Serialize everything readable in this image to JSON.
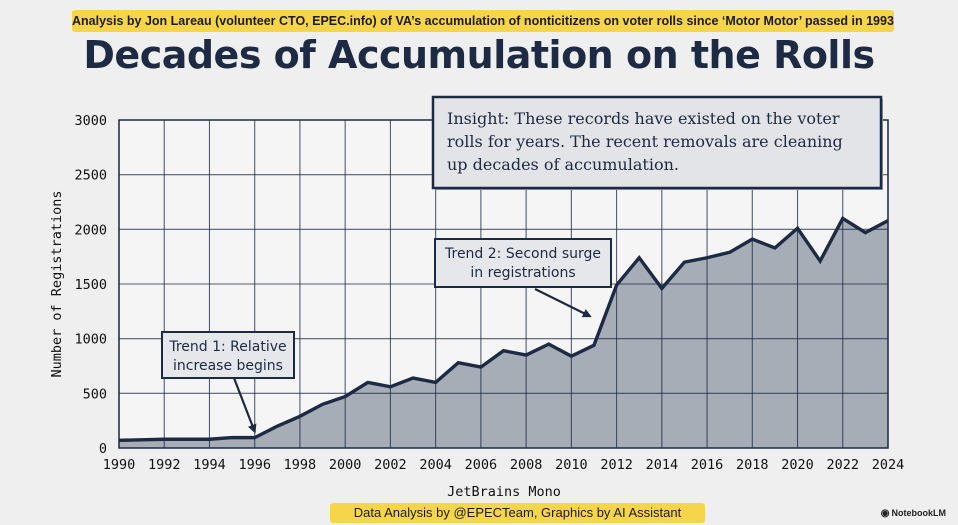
{
  "header": {
    "banner": "Analysis by Jon Lareau (volunteer CTO, EPEC.info) of VA’s accumulation of nonticitizens on voter rolls since ‘Motor Motor’ passed in 1993.",
    "title": "Decades of Accumulation on the Rolls"
  },
  "footer": {
    "credit": "Data Analysis by @EPECTeam, Graphics by AI Assistant",
    "brand": "NotebookLM",
    "brand_icon": "notebooklm-logo-icon"
  },
  "colors": {
    "area_fill": "#a7adb6",
    "line": "#1c2a44",
    "grid": "#1c2a44",
    "banner": "#f7d54a",
    "insight_bg": "#e2e4e7"
  },
  "chart_data": {
    "type": "area",
    "title": "Decades of Accumulation on the Rolls",
    "xlabel": "JetBrains Mono",
    "ylabel": "Number of Registrations",
    "xlim": [
      1990,
      2024
    ],
    "ylim": [
      0,
      3000
    ],
    "x_ticks": [
      "1990",
      "1992",
      "1994",
      "1996",
      "1998",
      "2000",
      "2002",
      "2004",
      "2006",
      "2008",
      "2010",
      "2012",
      "2014",
      "2016",
      "2018",
      "2020",
      "2022",
      "2024"
    ],
    "y_ticks": [
      "0",
      "500",
      "1000",
      "1500",
      "2000",
      "2500",
      "3000"
    ],
    "grid": true,
    "x": [
      1990,
      1991,
      1992,
      1993,
      1994,
      1995,
      1996,
      1997,
      1998,
      1999,
      2000,
      2001,
      2002,
      2003,
      2004,
      2005,
      2006,
      2007,
      2008,
      2009,
      2010,
      2011,
      2012,
      2013,
      2014,
      2015,
      2016,
      2017,
      2018,
      2019,
      2020,
      2021,
      2022,
      2023,
      2024
    ],
    "values": [
      70,
      75,
      80,
      80,
      80,
      95,
      95,
      200,
      290,
      400,
      470,
      600,
      560,
      640,
      600,
      780,
      740,
      890,
      850,
      950,
      840,
      940,
      1490,
      1740,
      1460,
      1700,
      1740,
      1790,
      1910,
      1830,
      2010,
      1710,
      2100,
      1970,
      2080
    ],
    "annotations": [
      {
        "name": "trend-1",
        "lines": [
          "Trend 1: Relative",
          "increase begins"
        ],
        "target_x": 1996,
        "target_y": 95
      },
      {
        "name": "trend-2",
        "lines": [
          "Trend 2: Second surge",
          "in registrations"
        ],
        "target_x": 2011,
        "target_y": 1150
      }
    ],
    "insight": {
      "lines": [
        "Insight: These records have existed on the voter",
        "rolls for years. The recent removals are cleaning",
        "up decades of accumulation."
      ]
    }
  }
}
